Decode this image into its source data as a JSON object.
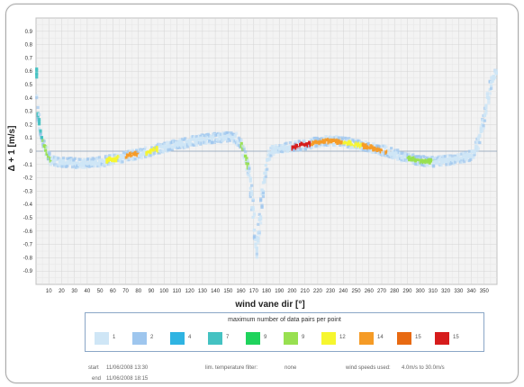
{
  "chart_data": {
    "type": "scatter",
    "title": "",
    "xlabel": "wind vane dir  [°]",
    "ylabel": "Δ + 1  [m/s]",
    "xlim": [
      0,
      360
    ],
    "ylim": [
      -1.0,
      1.0
    ],
    "x_ticks": [
      10,
      20,
      30,
      40,
      50,
      60,
      70,
      80,
      90,
      100,
      110,
      120,
      130,
      140,
      150,
      160,
      170,
      180,
      190,
      200,
      210,
      220,
      230,
      240,
      250,
      260,
      270,
      280,
      290,
      300,
      310,
      320,
      330,
      340,
      350
    ],
    "y_ticks": [
      0.9,
      0.8,
      0.7,
      0.6,
      0.5,
      0.4,
      0.3,
      0.2,
      0.1,
      0,
      -0.1,
      -0.2,
      -0.3,
      -0.4,
      -0.5,
      -0.6,
      -0.7,
      -0.8,
      -0.9
    ],
    "grid": true,
    "reference_line_y": 0,
    "series": [
      {
        "points": [
          [
            1,
            0.32
          ],
          [
            2,
            0.25
          ],
          [
            3,
            0.18
          ],
          [
            5,
            0.1
          ],
          [
            7,
            0.03
          ],
          [
            9,
            -0.03
          ],
          [
            12,
            -0.07
          ],
          [
            20,
            -0.08
          ],
          [
            30,
            -0.09
          ],
          [
            40,
            -0.09
          ],
          [
            50,
            -0.08
          ],
          [
            60,
            -0.06
          ],
          [
            70,
            -0.04
          ],
          [
            80,
            -0.02
          ],
          [
            90,
            0.0
          ],
          [
            100,
            0.03
          ],
          [
            110,
            0.05
          ],
          [
            120,
            0.07
          ],
          [
            130,
            0.09
          ],
          [
            140,
            0.1
          ],
          [
            150,
            0.11
          ],
          [
            156,
            0.1
          ],
          [
            160,
            0.05
          ],
          [
            164,
            -0.05
          ],
          [
            167,
            -0.2
          ],
          [
            169,
            -0.4
          ],
          [
            171,
            -0.6
          ],
          [
            172,
            -0.75
          ],
          [
            173,
            -0.68
          ],
          [
            175,
            -0.5
          ],
          [
            177,
            -0.3
          ],
          [
            180,
            -0.1
          ],
          [
            183,
            0.0
          ],
          [
            190,
            0.02
          ],
          [
            200,
            0.03
          ],
          [
            210,
            0.05
          ],
          [
            220,
            0.07
          ],
          [
            230,
            0.08
          ],
          [
            240,
            0.07
          ],
          [
            250,
            0.05
          ],
          [
            260,
            0.03
          ],
          [
            270,
            0.01
          ],
          [
            280,
            -0.02
          ],
          [
            290,
            -0.05
          ],
          [
            300,
            -0.07
          ],
          [
            310,
            -0.08
          ],
          [
            320,
            -0.07
          ],
          [
            330,
            -0.06
          ],
          [
            340,
            -0.03
          ],
          [
            345,
            0.05
          ],
          [
            350,
            0.25
          ],
          [
            355,
            0.5
          ],
          [
            359,
            0.58
          ]
        ]
      }
    ],
    "density_bands": [
      {
        "range": [
          0,
          5
        ],
        "level": 7
      },
      {
        "range": [
          5,
          12
        ],
        "level": 9
      },
      {
        "range": [
          55,
          65
        ],
        "level": 12
      },
      {
        "range": [
          70,
          80
        ],
        "level": 14
      },
      {
        "range": [
          86,
          96
        ],
        "level": 12
      },
      {
        "range": [
          160,
          166
        ],
        "level": 9
      },
      {
        "range": [
          200,
          215
        ],
        "level": 15
      },
      {
        "range": [
          215,
          240
        ],
        "level": 14
      },
      {
        "range": [
          240,
          255
        ],
        "level": 12
      },
      {
        "range": [
          255,
          275
        ],
        "level": 14
      },
      {
        "range": [
          290,
          310
        ],
        "level": 9
      }
    ],
    "legend": {
      "title": "maximum number of data pairs per point",
      "items": [
        {
          "label": "1",
          "color": "#cfe6f6"
        },
        {
          "label": "2",
          "color": "#9ec6ee"
        },
        {
          "label": "4",
          "color": "#2fb4e2"
        },
        {
          "label": "7",
          "color": "#44c2c2"
        },
        {
          "label": "9",
          "color": "#1fd35c"
        },
        {
          "label": "9",
          "color": "#98e050"
        },
        {
          "label": "12",
          "color": "#f6f62e"
        },
        {
          "label": "14",
          "color": "#f59b26"
        },
        {
          "label": "15",
          "color": "#e86a12"
        },
        {
          "label": "15",
          "color": "#d61c1c"
        }
      ]
    }
  },
  "footer": {
    "start_label": "start",
    "start_value": "11/06/2008 13:30",
    "end_label": "end",
    "end_value": "11/06/2008 18:15",
    "filter_label": "lim. temperature filter:",
    "filter_value": "none",
    "speeds_label": "wind speeds used:",
    "speeds_value": "4.0m/s  to  30.0m/s"
  }
}
